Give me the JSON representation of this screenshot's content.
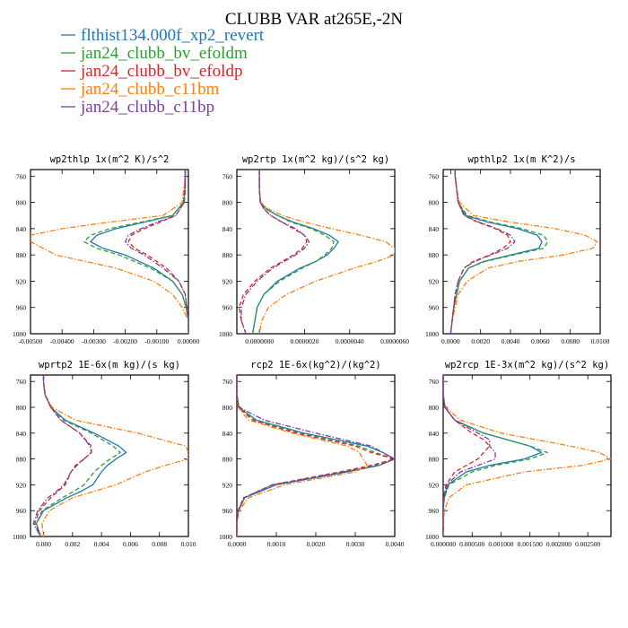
{
  "figure": {
    "title": "CLUBB VAR at265E,-2N"
  },
  "legend": [
    {
      "label": "flthist134.000f_xp2_revert",
      "color": "#1f77b4",
      "dash": "solid"
    },
    {
      "label": "jan24_clubb_bv_efoldm",
      "color": "#2ca02c",
      "dash": "dash"
    },
    {
      "label": "jan24_clubb_bv_efoldp",
      "color": "#d62728",
      "dash": "dash"
    },
    {
      "label": "jan24_clubb_c11bm",
      "color": "#ff7f0e",
      "dash": "dashdot"
    },
    {
      "label": "jan24_clubb_c11bp",
      "color": "#7b3f9e",
      "dash": "dashdot"
    }
  ],
  "chart_data": [
    {
      "type": "line",
      "title": "wp2thlp  1x(m^2 K)/s^2",
      "xlim": [
        -0.005,
        0.0
      ],
      "ylim": [
        1000,
        750
      ],
      "xticks": [
        "-0.00500",
        "-0.00400",
        "-0.00300",
        "-0.00200",
        "-0.00100",
        "0.00000"
      ],
      "xtick_values": [
        -0.005,
        -0.004,
        -0.003,
        -0.002,
        -0.001,
        0.0
      ],
      "yticks": [
        "760",
        "800",
        "840",
        "880",
        "920",
        "960",
        "1000"
      ],
      "ytick_values": [
        760,
        800,
        840,
        880,
        920,
        960,
        1000
      ],
      "y": [
        750,
        760,
        780,
        800,
        820,
        830,
        840,
        850,
        860,
        870,
        880,
        900,
        920,
        940,
        960,
        980,
        1000
      ],
      "series": [
        {
          "values": [
            -0.0001,
            -0.0001,
            -0.00012,
            -0.00015,
            -0.0005,
            -0.0014,
            -0.0023,
            -0.0029,
            -0.0031,
            -0.0027,
            -0.002,
            -0.0011,
            -0.0005,
            -0.0002,
            -7e-05,
            0.0,
            0.0
          ]
        },
        {
          "values": [
            -0.0001,
            -0.0001,
            -0.00012,
            -0.00016,
            -0.0005,
            -0.0015,
            -0.0025,
            -0.0031,
            -0.0033,
            -0.0029,
            -0.0022,
            -0.0012,
            -0.0005,
            -0.0002,
            -7e-05,
            0.0,
            0.0
          ]
        },
        {
          "values": [
            -0.0001,
            -0.0001,
            -0.0001,
            -0.00013,
            -0.0004,
            -0.0009,
            -0.0014,
            -0.0018,
            -0.0019,
            -0.0017,
            -0.0013,
            -0.0007,
            -0.0003,
            -0.0001,
            -5e-05,
            0.0,
            0.0
          ]
        },
        {
          "values": [
            -0.0001,
            -0.0001,
            -0.00015,
            -0.0002,
            -0.0008,
            -0.0025,
            -0.004,
            -0.005,
            -0.005,
            -0.0046,
            -0.0042,
            -0.0023,
            -0.0011,
            -0.0005,
            -0.0002,
            0.0,
            0.0
          ]
        },
        {
          "values": [
            -0.0001,
            -0.0001,
            -0.0001,
            -0.00013,
            -0.0004,
            -0.001,
            -0.0015,
            -0.0019,
            -0.002,
            -0.0018,
            -0.0014,
            -0.0008,
            -0.0003,
            -0.0001,
            -5e-05,
            0.0,
            0.0
          ]
        }
      ]
    },
    {
      "type": "line",
      "title": "wp2rtp  1x(m^2 kg)/(s^2 kg)",
      "xlim": [
        -1e-06,
        6e-06
      ],
      "ylim": [
        1000,
        750
      ],
      "xticks": [
        "0.0000000",
        "0.0000020",
        "0.0000040",
        "0.0000060"
      ],
      "xtick_values": [
        0.0,
        2e-06,
        4e-06,
        6e-06
      ],
      "yticks": [
        "760",
        "800",
        "840",
        "880",
        "920",
        "960",
        "1000"
      ],
      "ytick_values": [
        760,
        800,
        840,
        880,
        920,
        960,
        1000
      ],
      "y": [
        750,
        760,
        780,
        800,
        810,
        820,
        830,
        840,
        850,
        860,
        870,
        880,
        890,
        900,
        920,
        940,
        960,
        980,
        1000
      ],
      "series": [
        {
          "values": [
            0.0,
            0.0,
            0.0,
            5e-08,
            3e-07,
            8e-07,
            1.5e-06,
            2.4e-06,
            3.1e-06,
            3.5e-06,
            3.3e-06,
            3e-06,
            2.5e-06,
            1.8e-06,
            8e-07,
            2e-07,
            -1e-07,
            -2e-07,
            -3e-07
          ]
        },
        {
          "values": [
            0.0,
            0.0,
            0.0,
            5e-08,
            3e-07,
            8e-07,
            1.4e-06,
            2.3e-06,
            2.9e-06,
            3.3e-06,
            3.2e-06,
            2.9e-06,
            2.5e-06,
            1.9e-06,
            9e-07,
            2e-07,
            -1e-07,
            -2e-07,
            -3e-07
          ]
        },
        {
          "values": [
            0.0,
            0.0,
            0.0,
            4e-08,
            2e-07,
            5e-07,
            1e-06,
            1.5e-06,
            2e-06,
            2.1e-06,
            1.9e-06,
            1.5e-06,
            1e-06,
            5e-07,
            -2e-07,
            -7e-07,
            -9e-07,
            -8e-07,
            -6e-07
          ]
        },
        {
          "values": [
            0.0,
            0.0,
            0.0,
            6e-08,
            4e-07,
            1e-06,
            2e-06,
            3.2e-06,
            4.5e-06,
            5.6e-06,
            6e-06,
            6e-06,
            5.2e-06,
            4.2e-06,
            2.5e-06,
            1.2e-06,
            4e-07,
            1e-07,
            0.0
          ]
        },
        {
          "values": [
            0.0,
            0.0,
            0.0,
            4e-08,
            2e-07,
            5e-07,
            1e-06,
            1.6e-06,
            2e-06,
            2.2e-06,
            2e-06,
            1.6e-06,
            1.1e-06,
            6e-07,
            -1e-07,
            -6e-07,
            -8e-07,
            -8e-07,
            -6e-07
          ]
        }
      ]
    },
    {
      "type": "line",
      "title": "wpthlp2  1x(m K^2)/s",
      "xlim": [
        -0.0005,
        0.01
      ],
      "ylim": [
        1000,
        750
      ],
      "xticks": [
        "0.0000",
        "0.0020",
        "0.0040",
        "0.0060",
        "0.0080",
        "0.0100"
      ],
      "xtick_values": [
        0.0,
        0.002,
        0.004,
        0.006,
        0.008,
        0.01
      ],
      "yticks": [
        "760",
        "800",
        "840",
        "880",
        "920",
        "960",
        "1000"
      ],
      "ytick_values": [
        760,
        800,
        840,
        880,
        920,
        960,
        1000
      ],
      "y": [
        750,
        760,
        780,
        800,
        820,
        830,
        840,
        850,
        860,
        870,
        880,
        890,
        900,
        920,
        940,
        960,
        980,
        1000
      ],
      "series": [
        {
          "values": [
            0.0003,
            0.0003,
            0.0004,
            0.0005,
            0.001,
            0.0025,
            0.0045,
            0.0058,
            0.0061,
            0.0059,
            0.004,
            0.0022,
            0.0012,
            0.0006,
            0.0004,
            0.0002,
            0.0001,
            0.0
          ]
        },
        {
          "values": [
            0.0003,
            0.0003,
            0.0004,
            0.0005,
            0.0011,
            0.0027,
            0.0048,
            0.0062,
            0.0065,
            0.0062,
            0.0042,
            0.0023,
            0.0012,
            0.0006,
            0.0004,
            0.0002,
            0.0001,
            0.0
          ]
        },
        {
          "values": [
            0.0003,
            0.0003,
            0.0004,
            0.0005,
            0.0009,
            0.0018,
            0.003,
            0.0038,
            0.004,
            0.0035,
            0.0026,
            0.0015,
            0.0009,
            0.0005,
            0.0003,
            0.0002,
            0.0001,
            0.0
          ]
        },
        {
          "values": [
            0.0003,
            0.0003,
            0.0004,
            0.0006,
            0.0015,
            0.004,
            0.007,
            0.009,
            0.0098,
            0.0095,
            0.0075,
            0.0045,
            0.0025,
            0.0011,
            0.0005,
            0.0003,
            0.0001,
            0.0
          ]
        },
        {
          "values": [
            0.0003,
            0.0003,
            0.0004,
            0.0005,
            0.0009,
            0.0019,
            0.0031,
            0.004,
            0.0043,
            0.0038,
            0.0027,
            0.0016,
            0.0009,
            0.0005,
            0.0003,
            0.0002,
            0.0001,
            0.0
          ]
        }
      ]
    },
    {
      "type": "line",
      "title": "wprtp2  1E-6x(m kg)/(s kg)",
      "xlim": [
        -0.0009,
        0.01
      ],
      "ylim": [
        1000,
        750
      ],
      "xticks": [
        "0.000",
        "0.002",
        "0.004",
        "0.006",
        "0.008",
        "0.010"
      ],
      "xtick_values": [
        0.0,
        0.002,
        0.004,
        0.006,
        0.008,
        0.01
      ],
      "yticks": [
        "760",
        "800",
        "840",
        "880",
        "920",
        "960",
        "1000"
      ],
      "ytick_values": [
        760,
        800,
        840,
        880,
        920,
        960,
        1000
      ],
      "y": [
        750,
        760,
        780,
        800,
        820,
        840,
        860,
        870,
        880,
        890,
        900,
        920,
        930,
        940,
        960,
        980,
        1000
      ],
      "series": [
        {
          "values": [
            0.0,
            0.0,
            0.0001,
            0.0005,
            0.0015,
            0.0035,
            0.0052,
            0.0057,
            0.005,
            0.0044,
            0.004,
            0.0034,
            0.0026,
            0.0016,
            0.0,
            -0.0005,
            -0.0002
          ]
        },
        {
          "values": [
            0.0,
            0.0,
            0.0001,
            0.0005,
            0.0014,
            0.0033,
            0.0048,
            0.0053,
            0.0046,
            0.004,
            0.0035,
            0.0028,
            0.0021,
            0.0013,
            -0.0001,
            -0.0005,
            -0.0002
          ]
        },
        {
          "values": [
            0.0,
            0.0,
            0.0001,
            0.0005,
            0.0012,
            0.0025,
            0.0033,
            0.0033,
            0.0028,
            0.0022,
            0.0019,
            0.0015,
            0.001,
            0.0005,
            -0.0003,
            -0.0006,
            -0.0002
          ]
        },
        {
          "values": [
            0.0,
            0.0,
            0.0001,
            0.0006,
            0.0022,
            0.0065,
            0.0098,
            0.01,
            0.01,
            0.0084,
            0.007,
            0.005,
            0.0035,
            0.002,
            0.0004,
            -0.0001,
            0.0
          ]
        },
        {
          "values": [
            0.0,
            0.0,
            0.0001,
            0.0005,
            0.0012,
            0.0025,
            0.0032,
            0.0033,
            0.0028,
            0.0023,
            0.0019,
            0.0014,
            0.0009,
            0.0003,
            -0.0004,
            -0.0007,
            -0.0002
          ]
        }
      ]
    },
    {
      "type": "line",
      "title": "rcp2  1E-6x(kg^2)/(kg^2)",
      "xlim": [
        0.0,
        0.004
      ],
      "ylim": [
        1000,
        750
      ],
      "xticks": [
        "0.0000",
        "0.0010",
        "0.0020",
        "0.0030",
        "0.0040"
      ],
      "xtick_values": [
        0.0,
        0.001,
        0.002,
        0.003,
        0.004
      ],
      "yticks": [
        "760",
        "800",
        "840",
        "880",
        "920",
        "960",
        "1000"
      ],
      "ytick_values": [
        760,
        800,
        840,
        880,
        920,
        960,
        1000
      ],
      "y": [
        750,
        760,
        780,
        800,
        820,
        840,
        860,
        870,
        880,
        890,
        900,
        920,
        940,
        960,
        980,
        1000
      ],
      "series": [
        {
          "values": [
            0.0,
            0.0,
            0.0,
            5e-05,
            0.0005,
            0.0017,
            0.0033,
            0.0037,
            0.004,
            0.0036,
            0.0028,
            0.001,
            0.0002,
            4e-05,
            0.0,
            0.0
          ]
        },
        {
          "values": [
            0.0,
            0.0,
            0.0,
            5e-05,
            0.00045,
            0.0016,
            0.0031,
            0.0035,
            0.004,
            0.0035,
            0.0027,
            0.0009,
            0.00018,
            4e-05,
            0.0,
            0.0
          ]
        },
        {
          "values": [
            0.0,
            0.0,
            0.0,
            4e-05,
            0.0004,
            0.0015,
            0.003,
            0.0034,
            0.004,
            0.0034,
            0.0026,
            0.0009,
            0.00017,
            3e-05,
            0.0,
            0.0
          ]
        },
        {
          "values": [
            0.0,
            0.0,
            0.0,
            3e-05,
            0.0003,
            0.0014,
            0.0028,
            0.0031,
            0.0032,
            0.0033,
            0.003,
            0.0012,
            0.0003,
            5e-05,
            0.0,
            0.0
          ]
        },
        {
          "values": [
            0.0,
            0.0,
            0.0,
            6e-05,
            0.0007,
            0.002,
            0.0034,
            0.0037,
            0.004,
            0.0036,
            0.0027,
            0.0009,
            0.00018,
            4e-05,
            0.0,
            0.0
          ]
        }
      ]
    },
    {
      "type": "line",
      "title": "wp2rcp  1E-3x(m^2 kg)/(s^2 kg)",
      "xlim": [
        0.0,
        0.0029
      ],
      "ylim": [
        1000,
        750
      ],
      "xticks": [
        "0.000000",
        "0.000500",
        "0.001000",
        "0.001500",
        "0.002000",
        "0.002500"
      ],
      "xtick_values": [
        0.0,
        0.0005,
        0.001,
        0.0015,
        0.002,
        0.0025
      ],
      "yticks": [
        "760",
        "800",
        "840",
        "880",
        "920",
        "960",
        "1000"
      ],
      "ytick_values": [
        760,
        800,
        840,
        880,
        920,
        960,
        1000
      ],
      "y": [
        750,
        760,
        780,
        800,
        820,
        840,
        850,
        860,
        870,
        880,
        890,
        900,
        920,
        940,
        960,
        980,
        1000
      ],
      "series": [
        {
          "values": [
            0.0,
            0.0,
            0.0,
            3e-05,
            0.0002,
            0.0007,
            0.0011,
            0.0015,
            0.0017,
            0.0014,
            0.0008,
            0.0004,
            8e-05,
            2e-05,
            0.0,
            0.0,
            0.0
          ]
        },
        {
          "values": [
            0.0,
            0.0,
            0.0,
            3e-05,
            0.0002,
            0.0007,
            0.0011,
            0.0015,
            0.0018,
            0.0015,
            0.0009,
            0.0005,
            0.0001,
            2e-05,
            0.0,
            0.0,
            0.0
          ]
        },
        {
          "values": [
            0.0,
            0.0,
            0.0,
            3e-05,
            0.0002,
            0.0005,
            0.0007,
            0.0008,
            0.0007,
            0.0006,
            0.0004,
            0.0002,
            5e-05,
            1e-05,
            0.0,
            0.0,
            0.0
          ]
        },
        {
          "values": [
            0.0,
            0.0,
            0.0,
            4e-05,
            0.0003,
            0.001,
            0.0016,
            0.0022,
            0.0027,
            0.0029,
            0.0024,
            0.0014,
            0.0004,
            0.0001,
            2e-05,
            0.0,
            0.0
          ]
        },
        {
          "values": [
            0.0,
            0.0,
            0.0,
            3e-05,
            0.0002,
            0.0006,
            0.0008,
            0.0008,
            0.0009,
            0.0009,
            0.0006,
            0.0003,
            6e-05,
            1e-05,
            0.0,
            0.0,
            0.0
          ]
        }
      ]
    }
  ]
}
